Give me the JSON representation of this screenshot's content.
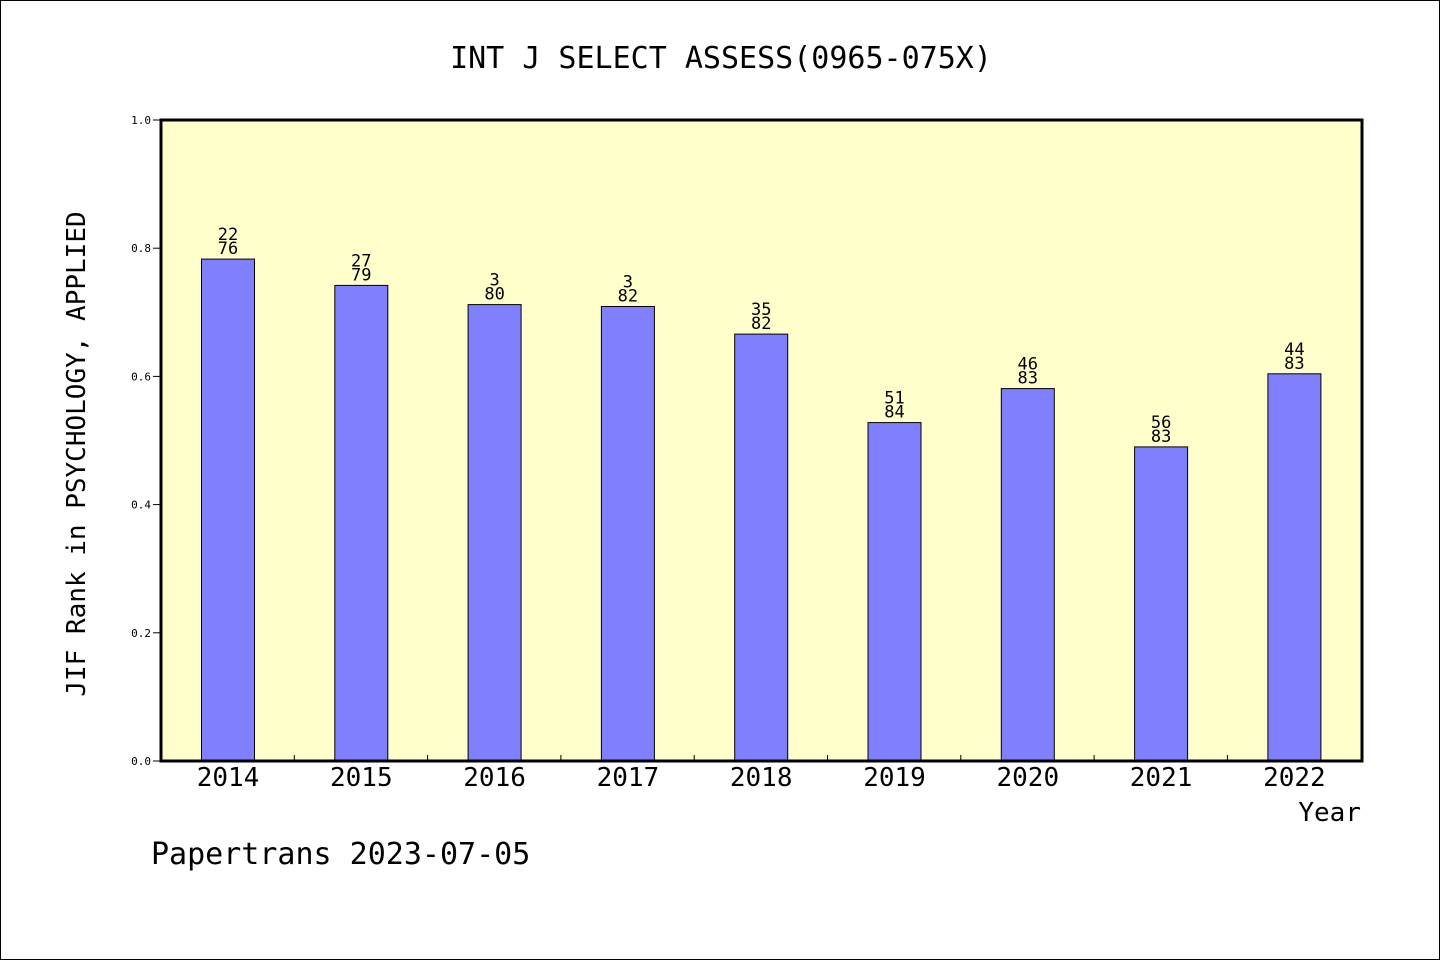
{
  "footer": {
    "credit": "Papertrans 2023-07-05"
  },
  "chart_data": {
    "type": "bar",
    "title": "INT J SELECT ASSESS(0965-075X)",
    "xlabel": "Year",
    "ylabel": "JIF Rank in PSYCHOLOGY, APPLIED",
    "categories": [
      "2014",
      "2015",
      "2016",
      "2017",
      "2018",
      "2019",
      "2020",
      "2021",
      "2022"
    ],
    "values": [
      0.783,
      0.742,
      0.712,
      0.709,
      0.666,
      0.528,
      0.581,
      0.49,
      0.604
    ],
    "bar_labels": [
      {
        "top": "22",
        "bottom": "76"
      },
      {
        "top": "27",
        "bottom": "79"
      },
      {
        "top": "3",
        "bottom": "80"
      },
      {
        "top": "3",
        "bottom": "82"
      },
      {
        "top": "35",
        "bottom": "82"
      },
      {
        "top": "51",
        "bottom": "84"
      },
      {
        "top": "46",
        "bottom": "83"
      },
      {
        "top": "56",
        "bottom": "83"
      },
      {
        "top": "44",
        "bottom": "83"
      }
    ],
    "ylim": [
      0,
      1.0
    ],
    "yticks": [
      "0.0",
      "0.2",
      "0.4",
      "0.6",
      "0.8",
      "1.0"
    ],
    "grid": false,
    "colors": {
      "plot_background": "#ffffcc",
      "bar_fill": "#8080ff",
      "bar_stroke": "#000000"
    }
  }
}
